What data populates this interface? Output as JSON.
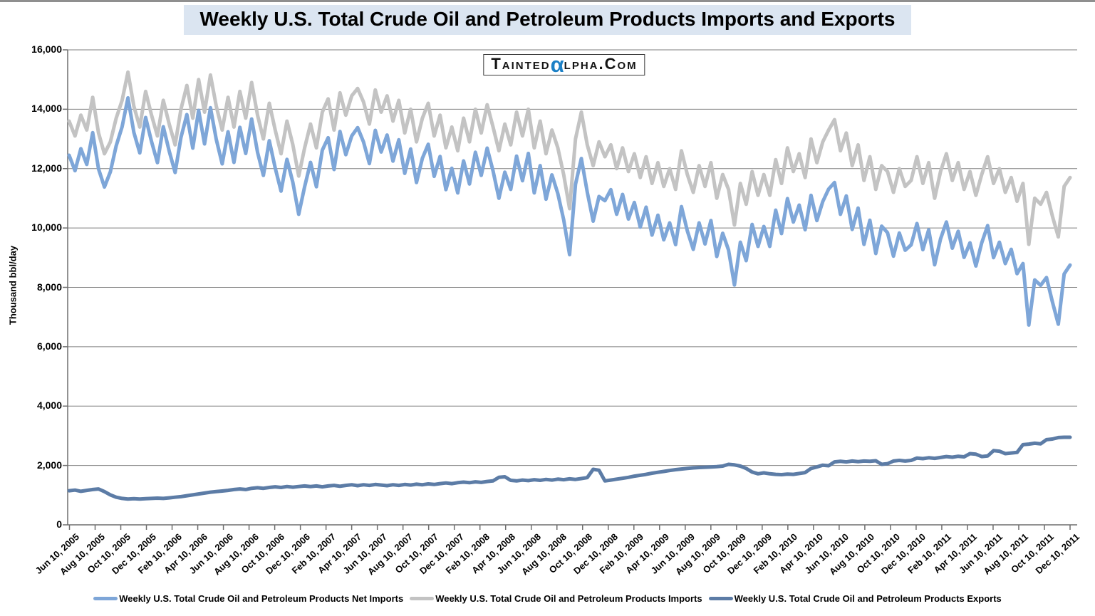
{
  "title": "Weekly U.S. Total Crude Oil and Petroleum Products Imports and Exports",
  "watermark": {
    "prefix": "Tainted",
    "alpha": "α",
    "suffix": "lpha.Com"
  },
  "colors": {
    "title_background": "#dbe5f1",
    "gridline": "#7f7f7f",
    "axis": "#6e6e6e",
    "net_imports": "#7ea6d8",
    "imports": "#c3c3c3",
    "exports": "#5c7ca6",
    "watermark_alpha": "#1b80c6"
  },
  "y_axis": {
    "title": "Thousand bbl/day",
    "ticks": [
      {
        "value": 16000,
        "label": "16,000"
      },
      {
        "value": 14000,
        "label": "14,000"
      },
      {
        "value": 12000,
        "label": "12,000"
      },
      {
        "value": 10000,
        "label": "10,000"
      },
      {
        "value": 8000,
        "label": "8,000"
      },
      {
        "value": 6000,
        "label": "6,000"
      },
      {
        "value": 4000,
        "label": "4,000"
      },
      {
        "value": 2000,
        "label": "2,000"
      },
      {
        "value": 0,
        "label": "0"
      }
    ]
  },
  "chart_data": {
    "type": "line",
    "title": "Weekly U.S. Total Crude Oil and Petroleum Products Imports and Exports",
    "xlabel": "",
    "ylabel": "Thousand bbl/day",
    "ylim": [
      0,
      16000
    ],
    "grid": true,
    "legend_position": "bottom",
    "x_unit": "weekly data sampled every 2 weeks, Jun 10 2005 - Dec 16 2011",
    "x_tick_labels": [
      "Jun 10, 2005",
      "Aug 10, 2005",
      "Oct 10, 2005",
      "Dec 10, 2005",
      "Feb 10, 2006",
      "Apr 10, 2006",
      "Jun 10, 2006",
      "Aug 10, 2006",
      "Oct 10, 2006",
      "Dec 10, 2006",
      "Feb 10, 2007",
      "Apr 10, 2007",
      "Jun 10, 2007",
      "Aug 10, 2007",
      "Oct 10, 2007",
      "Dec 10, 2007",
      "Feb 10, 2008",
      "Apr 10, 2008",
      "Jun 10, 2008",
      "Aug 10, 2008",
      "Oct 10, 2008",
      "Dec 10, 2008",
      "Feb 10, 2009",
      "Apr 10, 2009",
      "Jun 10, 2009",
      "Aug 10, 2009",
      "Oct 10, 2009",
      "Dec 10, 2009",
      "Feb 10, 2010",
      "Apr 10, 2010",
      "Jun 10, 2010",
      "Aug 10, 2010",
      "Oct 10, 2010",
      "Dec 10, 2010",
      "Feb 10, 2011",
      "Apr 10, 2011",
      "Jun 10, 2011",
      "Aug 10, 2011",
      "Oct 10, 2011",
      "Dec 10, 2011"
    ],
    "draw_order": [
      1,
      0,
      2
    ],
    "series": [
      {
        "id": "net-imports",
        "name": "Weekly U.S. Total Crude Oil and Petroleum Products Net Imports",
        "color": "#7ea6d8",
        "values": [
          12450,
          11930,
          12670,
          12140,
          13210,
          11990,
          11380,
          11890,
          12770,
          13410,
          14380,
          13220,
          12530,
          13720,
          12910,
          12200,
          13410,
          12590,
          11870,
          13050,
          13820,
          12690,
          13960,
          12830,
          14050,
          12980,
          12160,
          13240,
          12210,
          13390,
          12510,
          13670,
          12550,
          11770,
          12940,
          12020,
          11240,
          12310,
          11530,
          10460,
          11390,
          12210,
          11390,
          12620,
          13040,
          11970,
          13250,
          12470,
          13100,
          13380,
          12900,
          12170,
          13290,
          12560,
          13130,
          12250,
          12970,
          11840,
          12660,
          11530,
          12350,
          12820,
          11740,
          12410,
          11290,
          12010,
          11180,
          12260,
          11480,
          12550,
          11770,
          12690,
          11920,
          11000,
          11880,
          11300,
          12420,
          11590,
          12510,
          11180,
          12100,
          10970,
          11790,
          11160,
          10280,
          9100,
          11470,
          12340,
          11210,
          10230,
          11060,
          10920,
          11290,
          10460,
          11130,
          10300,
          10860,
          10030,
          10700,
          9760,
          10430,
          9600,
          10170,
          9440,
          10720,
          9900,
          9280,
          10170,
          9460,
          10250,
          9040,
          9820,
          9260,
          8080,
          9520,
          8900,
          10120,
          9380,
          10050,
          9380,
          10600,
          9810,
          10990,
          10200,
          10770,
          9940,
          11100,
          10250,
          10890,
          11310,
          11530,
          10460,
          11080,
          9950,
          10670,
          9450,
          10260,
          9140,
          10060,
          9840,
          9050,
          9830,
          9250,
          9430,
          10150,
          9270,
          9940,
          8760,
          9630,
          10200,
          9320,
          9890,
          9010,
          9500,
          8720,
          9500,
          10080,
          9000,
          9520,
          8800,
          9280,
          8460,
          8800,
          6730,
          8250,
          8070,
          8330,
          7510,
          6760,
          8450,
          8750
        ]
      },
      {
        "id": "imports",
        "name": "Weekly U.S. Total Crude Oil and Petroleum Products Imports",
        "color": "#c3c3c3",
        "values": [
          13600,
          13100,
          13800,
          13300,
          14400,
          13200,
          12500,
          12900,
          13700,
          14300,
          15250,
          14100,
          13400,
          14600,
          13800,
          13100,
          14300,
          13500,
          12800,
          14000,
          14800,
          13700,
          15000,
          13900,
          15150,
          14100,
          13300,
          14400,
          13400,
          14600,
          13700,
          14900,
          13800,
          13000,
          14200,
          13300,
          12500,
          13600,
          12800,
          11750,
          12700,
          13500,
          12700,
          13900,
          14350,
          13300,
          14550,
          13800,
          14450,
          14700,
          14250,
          13500,
          14650,
          13900,
          14450,
          13600,
          14300,
          13200,
          14000,
          12900,
          13700,
          14200,
          13100,
          13800,
          12700,
          13400,
          12600,
          13700,
          12900,
          14000,
          13200,
          14150,
          13400,
          12600,
          13500,
          12800,
          13900,
          13100,
          14000,
          12700,
          13600,
          12500,
          13300,
          12700,
          11800,
          10650,
          13000,
          13900,
          12800,
          12100,
          12900,
          12400,
          12800,
          12000,
          12700,
          11900,
          12500,
          11700,
          12400,
          11500,
          12200,
          11400,
          12000,
          11300,
          12600,
          11800,
          11200,
          12100,
          11400,
          12200,
          11000,
          11800,
          11300,
          10100,
          11500,
          10800,
          11900,
          11100,
          11800,
          11100,
          12300,
          11500,
          12700,
          11900,
          12500,
          11700,
          13000,
          12200,
          12900,
          13300,
          13650,
          12600,
          13200,
          12100,
          12800,
          11600,
          12400,
          11300,
          12100,
          11900,
          11200,
          12000,
          11400,
          11600,
          12400,
          11500,
          12200,
          11000,
          11900,
          12500,
          11600,
          12200,
          11300,
          11900,
          11100,
          11800,
          12400,
          11500,
          12000,
          11200,
          11700,
          10900,
          11500,
          9450,
          11000,
          10800,
          11200,
          10400,
          9700,
          11400,
          11700
        ]
      },
      {
        "id": "exports",
        "name": "Weekly U.S. Total Crude Oil and Petroleum Products Exports",
        "color": "#5c7ca6",
        "values": [
          1150,
          1170,
          1130,
          1160,
          1190,
          1210,
          1120,
          1010,
          930,
          890,
          870,
          880,
          870,
          880,
          890,
          900,
          890,
          910,
          930,
          950,
          980,
          1010,
          1040,
          1070,
          1100,
          1120,
          1140,
          1160,
          1190,
          1210,
          1190,
          1230,
          1250,
          1230,
          1260,
          1280,
          1260,
          1290,
          1270,
          1290,
          1310,
          1290,
          1310,
          1280,
          1310,
          1330,
          1300,
          1330,
          1350,
          1320,
          1350,
          1330,
          1360,
          1340,
          1320,
          1350,
          1330,
          1360,
          1340,
          1370,
          1350,
          1380,
          1360,
          1390,
          1410,
          1390,
          1420,
          1440,
          1420,
          1450,
          1430,
          1460,
          1480,
          1600,
          1620,
          1500,
          1480,
          1510,
          1490,
          1520,
          1500,
          1530,
          1510,
          1540,
          1520,
          1550,
          1530,
          1560,
          1590,
          1870,
          1840,
          1480,
          1510,
          1540,
          1570,
          1600,
          1640,
          1670,
          1700,
          1740,
          1770,
          1800,
          1830,
          1860,
          1880,
          1900,
          1920,
          1930,
          1940,
          1950,
          1960,
          1980,
          2040,
          2020,
          1980,
          1900,
          1780,
          1720,
          1750,
          1720,
          1700,
          1690,
          1710,
          1700,
          1730,
          1760,
          1900,
          1950,
          2010,
          1990,
          2120,
          2140,
          2120,
          2150,
          2130,
          2150,
          2140,
          2160,
          2040,
          2060,
          2150,
          2170,
          2150,
          2170,
          2250,
          2230,
          2260,
          2240,
          2270,
          2300,
          2280,
          2310,
          2290,
          2400,
          2380,
          2300,
          2320,
          2500,
          2480,
          2400,
          2420,
          2440,
          2700,
          2720,
          2750,
          2730,
          2870,
          2890,
          2940,
          2950,
          2950
        ]
      }
    ]
  }
}
